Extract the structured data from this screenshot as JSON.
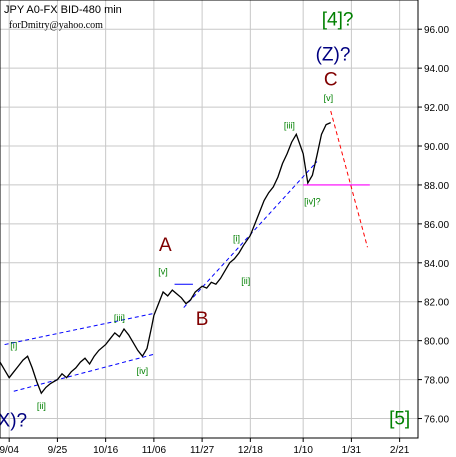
{
  "chart_data": {
    "type": "line",
    "title": "JPY A0-FX BID-480 min",
    "subtitle": "forDmitry@yahoo.com",
    "x_ticks": [
      "9/04",
      "9/25",
      "10/16",
      "11/06",
      "11/27",
      "12/18",
      "1/10",
      "1/31",
      "2/21"
    ],
    "y_ticks": [
      "76.00",
      "78.00",
      "80.00",
      "82.00",
      "84.00",
      "86.00",
      "88.00",
      "90.00",
      "92.00",
      "94.00",
      "96.00"
    ],
    "ylim": [
      75.0,
      97.5
    ],
    "xlim": [
      "8/31",
      "3/01"
    ],
    "grid": true,
    "series": [
      {
        "x": [
          "8/31",
          "9/02",
          "9/04",
          "9/06",
          "9/08",
          "9/10",
          "9/12",
          "9/14",
          "9/16",
          "9/18",
          "9/20",
          "9/22",
          "9/25",
          "9/27",
          "9/29",
          "10/01",
          "10/03",
          "10/05",
          "10/07",
          "10/09",
          "10/11",
          "10/13",
          "10/16",
          "10/18",
          "10/20",
          "10/22",
          "10/24",
          "10/26",
          "10/28",
          "10/30",
          "11/01",
          "11/03",
          "11/05",
          "11/06",
          "11/08",
          "11/10",
          "11/12",
          "11/14",
          "11/16",
          "11/18",
          "11/20",
          "11/22",
          "11/24",
          "11/27",
          "11/29",
          "12/01",
          "12/03",
          "12/05",
          "12/07",
          "12/09",
          "12/11",
          "12/13",
          "12/15",
          "12/18",
          "12/20",
          "12/22",
          "12/24",
          "12/26",
          "12/28",
          "12/30",
          "1/01",
          "1/03",
          "1/05",
          "1/07",
          "1/10",
          "1/12",
          "1/14",
          "1/16",
          "1/18",
          "1/20",
          "1/22"
        ],
        "values": [
          78.9,
          78.5,
          78.1,
          78.4,
          78.7,
          79.0,
          79.2,
          78.6,
          77.9,
          77.3,
          77.6,
          77.8,
          78.0,
          78.3,
          78.1,
          78.4,
          78.6,
          78.9,
          79.1,
          78.8,
          79.2,
          79.5,
          79.8,
          80.1,
          80.4,
          80.2,
          80.6,
          80.3,
          79.9,
          79.5,
          79.2,
          79.6,
          80.7,
          81.3,
          81.9,
          82.5,
          82.3,
          82.6,
          82.4,
          82.2,
          81.9,
          82.1,
          82.5,
          82.8,
          82.7,
          83.0,
          82.9,
          83.2,
          83.6,
          84.0,
          84.2,
          84.5,
          84.9,
          85.4,
          86.0,
          86.6,
          87.2,
          87.6,
          87.9,
          88.4,
          89.1,
          89.6,
          90.2,
          90.6,
          89.6,
          88.1,
          88.5,
          89.5,
          90.6,
          91.1,
          91.2
        ]
      }
    ],
    "forecast": [
      {
        "x": "1/22",
        "y": 91.8
      },
      {
        "x": "2/07",
        "y": 84.8
      }
    ],
    "level_line": {
      "x": [
        "1/10",
        "2/08"
      ],
      "y": 88.0
    },
    "channels": [
      {
        "points": [
          [
            "9/02",
            79.8
          ],
          [
            "11/06",
            81.4
          ]
        ]
      },
      {
        "points": [
          [
            "9/06",
            77.4
          ],
          [
            "11/06",
            79.3
          ]
        ]
      },
      {
        "points": [
          [
            "11/19",
            81.7
          ],
          [
            "1/16",
            89.2
          ]
        ]
      },
      {
        "points": [
          [
            "11/15",
            82.9
          ],
          [
            "11/23",
            82.9
          ]
        ]
      }
    ],
    "wave_labels": [
      {
        "text": "[i]",
        "x": "9/06",
        "y": 79.6,
        "size": "small",
        "color": "#008000"
      },
      {
        "text": "[ii]",
        "x": "9/18",
        "y": 76.5,
        "size": "small",
        "color": "#008000"
      },
      {
        "text": "[iii]",
        "x": "10/22",
        "y": 81.0,
        "size": "small",
        "color": "#008000"
      },
      {
        "text": "[iv]",
        "x": "11/01",
        "y": 78.3,
        "size": "small",
        "color": "#008000"
      },
      {
        "text": "[v]",
        "x": "11/10",
        "y": 83.4,
        "size": "small",
        "color": "#008000"
      },
      {
        "text": "A",
        "x": "11/11",
        "y": 84.6,
        "size": "big",
        "color": "#800000"
      },
      {
        "text": "B",
        "x": "11/27",
        "y": 80.8,
        "size": "big",
        "color": "#800000"
      },
      {
        "text": "[i]",
        "x": "12/12",
        "y": 85.1,
        "size": "small",
        "color": "#008000"
      },
      {
        "text": "[ii]",
        "x": "12/16",
        "y": 82.9,
        "size": "small",
        "color": "#008000"
      },
      {
        "text": "[iii]",
        "x": "1/04",
        "y": 90.9,
        "size": "small",
        "color": "#008000"
      },
      {
        "text": "[iv]?",
        "x": "1/14",
        "y": 87.0,
        "size": "small",
        "color": "#008000"
      },
      {
        "text": "[v]",
        "x": "1/21",
        "y": 92.3,
        "size": "small",
        "color": "#008000"
      },
      {
        "text": "C",
        "x": "1/22",
        "y": 93.1,
        "size": "big",
        "color": "#800000"
      },
      {
        "text": "(Z)?",
        "x": "1/23",
        "y": 94.4,
        "size": "big",
        "color": "#000080"
      },
      {
        "text": "[4]?",
        "x": "1/25",
        "y": 96.2,
        "size": "big",
        "color": "#008000"
      },
      {
        "text": "(X)?",
        "x": "9/04",
        "y": 75.6,
        "size": "big",
        "color": "#000080"
      },
      {
        "text": "[5]",
        "x": "2/21",
        "y": 75.7,
        "size": "big",
        "color": "#008000"
      }
    ]
  }
}
